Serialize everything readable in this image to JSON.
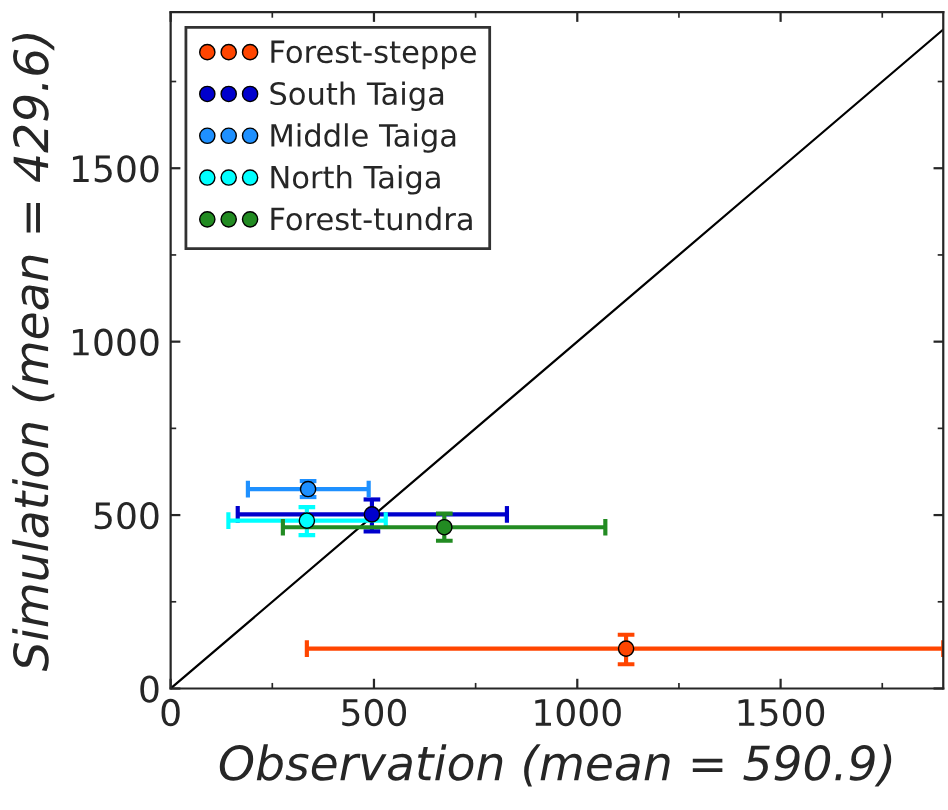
{
  "chart_data": {
    "type": "scatter",
    "xlabel": "Observation (mean = 590.9)",
    "ylabel": "Simulation (mean = 429.6)",
    "xlim": [
      0,
      1900
    ],
    "ylim": [
      0,
      1950
    ],
    "xticks": [
      0,
      500,
      1000,
      1500
    ],
    "yticks": [
      0,
      500,
      1000,
      1500
    ],
    "marker": "circle",
    "legend": "top left",
    "grid": false,
    "series": [
      {
        "name": "Forest-steppe",
        "color": "#ff4500",
        "x": [
          1120
        ],
        "values": [
          115
        ],
        "errors": [
          [
            70,
            155
          ]
        ],
        "xerrors": [
          [
            335,
            1900
          ]
        ]
      },
      {
        "name": "South Taiga",
        "color": "#0000cd",
        "x": [
          495
        ],
        "values": [
          502
        ],
        "errors": [
          [
            453,
            545
          ]
        ],
        "xerrors": [
          [
            165,
            827
          ]
        ]
      },
      {
        "name": "Middle Taiga",
        "color": "#1e90ff",
        "x": [
          338
        ],
        "values": [
          575
        ],
        "errors": [
          [
            552,
            598
          ]
        ],
        "xerrors": [
          [
            190,
            487
          ]
        ]
      },
      {
        "name": "North Taiga",
        "color": "#00ffff",
        "x": [
          335
        ],
        "values": [
          484
        ],
        "errors": [
          [
            442,
            523
          ]
        ],
        "xerrors": [
          [
            142,
            529
          ]
        ]
      },
      {
        "name": "Forest-tundra",
        "color": "#228b22",
        "x": [
          673
        ],
        "values": [
          465
        ],
        "errors": [
          [
            426,
            504
          ]
        ],
        "xerrors": [
          [
            276,
            1069
          ]
        ]
      },
      {
        "type": "line",
        "marker": "none",
        "color": "#000000",
        "x": [
          0,
          1900
        ],
        "values": [
          0,
          1900
        ]
      }
    ]
  }
}
